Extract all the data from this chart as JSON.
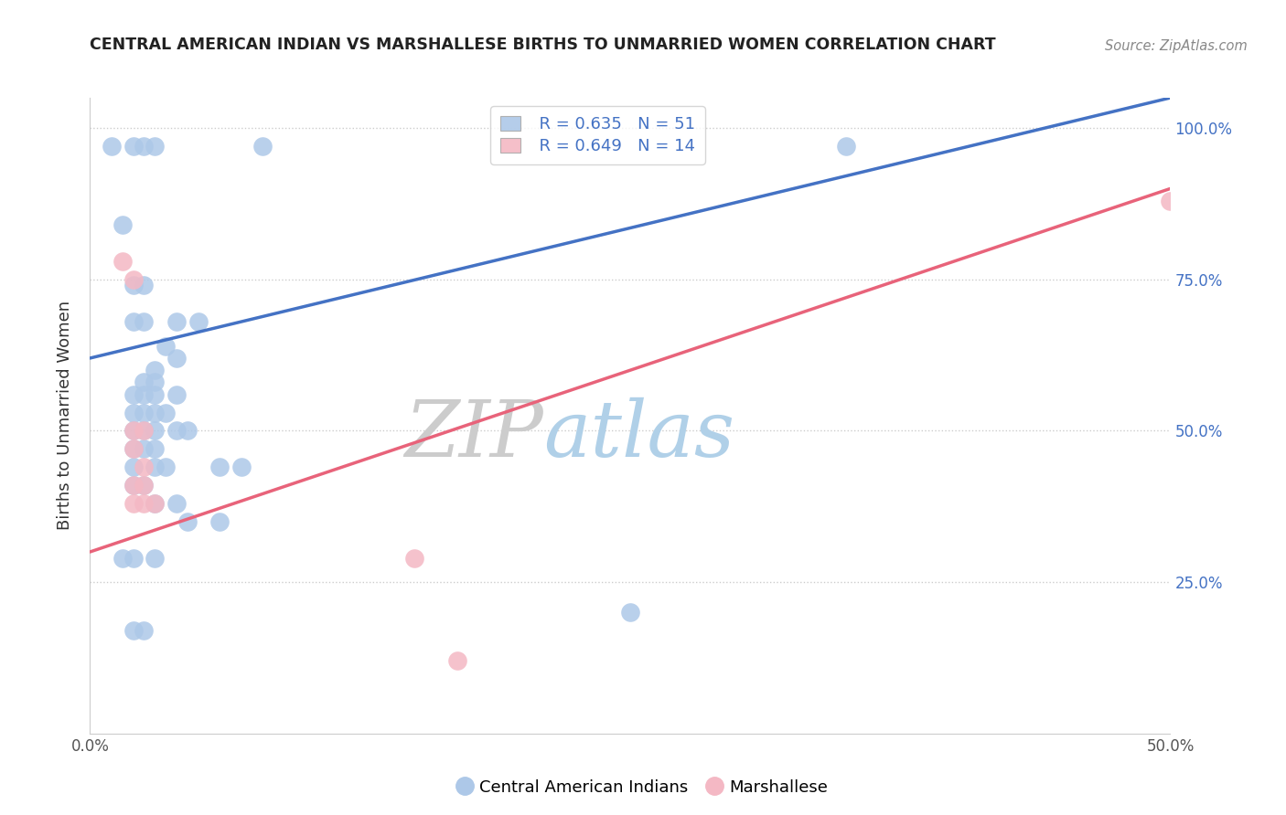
{
  "title": "CENTRAL AMERICAN INDIAN VS MARSHALLESE BIRTHS TO UNMARRIED WOMEN CORRELATION CHART",
  "source": "Source: ZipAtlas.com",
  "ylabel": "Births to Unmarried Women",
  "xlim": [
    0.0,
    0.5
  ],
  "ylim": [
    0.0,
    1.05
  ],
  "blue_R": "R = 0.635",
  "blue_N": "N = 51",
  "pink_R": "R = 0.649",
  "pink_N": "N = 14",
  "blue_color": "#adc8e8",
  "pink_color": "#f4b8c4",
  "blue_line_color": "#4472c4",
  "pink_line_color": "#e8637a",
  "watermark_zip": "ZIP",
  "watermark_atlas": "atlas",
  "blue_points": [
    [
      0.01,
      0.97
    ],
    [
      0.02,
      0.97
    ],
    [
      0.025,
      0.97
    ],
    [
      0.03,
      0.97
    ],
    [
      0.08,
      0.97
    ],
    [
      0.35,
      0.97
    ],
    [
      0.015,
      0.84
    ],
    [
      0.02,
      0.74
    ],
    [
      0.025,
      0.74
    ],
    [
      0.02,
      0.68
    ],
    [
      0.025,
      0.68
    ],
    [
      0.04,
      0.68
    ],
    [
      0.05,
      0.68
    ],
    [
      0.035,
      0.64
    ],
    [
      0.04,
      0.62
    ],
    [
      0.03,
      0.6
    ],
    [
      0.025,
      0.58
    ],
    [
      0.03,
      0.58
    ],
    [
      0.02,
      0.56
    ],
    [
      0.025,
      0.56
    ],
    [
      0.03,
      0.56
    ],
    [
      0.04,
      0.56
    ],
    [
      0.02,
      0.53
    ],
    [
      0.025,
      0.53
    ],
    [
      0.03,
      0.53
    ],
    [
      0.035,
      0.53
    ],
    [
      0.02,
      0.5
    ],
    [
      0.025,
      0.5
    ],
    [
      0.03,
      0.5
    ],
    [
      0.04,
      0.5
    ],
    [
      0.045,
      0.5
    ],
    [
      0.02,
      0.47
    ],
    [
      0.025,
      0.47
    ],
    [
      0.03,
      0.47
    ],
    [
      0.02,
      0.44
    ],
    [
      0.03,
      0.44
    ],
    [
      0.035,
      0.44
    ],
    [
      0.06,
      0.44
    ],
    [
      0.07,
      0.44
    ],
    [
      0.02,
      0.41
    ],
    [
      0.025,
      0.41
    ],
    [
      0.03,
      0.38
    ],
    [
      0.04,
      0.38
    ],
    [
      0.045,
      0.35
    ],
    [
      0.06,
      0.35
    ],
    [
      0.015,
      0.29
    ],
    [
      0.02,
      0.29
    ],
    [
      0.03,
      0.29
    ],
    [
      0.25,
      0.2
    ],
    [
      0.02,
      0.17
    ],
    [
      0.025,
      0.17
    ]
  ],
  "pink_points": [
    [
      0.015,
      0.78
    ],
    [
      0.02,
      0.75
    ],
    [
      0.02,
      0.5
    ],
    [
      0.025,
      0.5
    ],
    [
      0.02,
      0.47
    ],
    [
      0.025,
      0.44
    ],
    [
      0.02,
      0.41
    ],
    [
      0.025,
      0.41
    ],
    [
      0.02,
      0.38
    ],
    [
      0.025,
      0.38
    ],
    [
      0.03,
      0.38
    ],
    [
      0.15,
      0.29
    ],
    [
      0.17,
      0.12
    ],
    [
      0.5,
      0.88
    ]
  ],
  "blue_line_x": [
    0.0,
    0.5
  ],
  "blue_line_y": [
    0.62,
    1.05
  ],
  "pink_line_x": [
    0.0,
    0.5
  ],
  "pink_line_y": [
    0.3,
    0.9
  ]
}
